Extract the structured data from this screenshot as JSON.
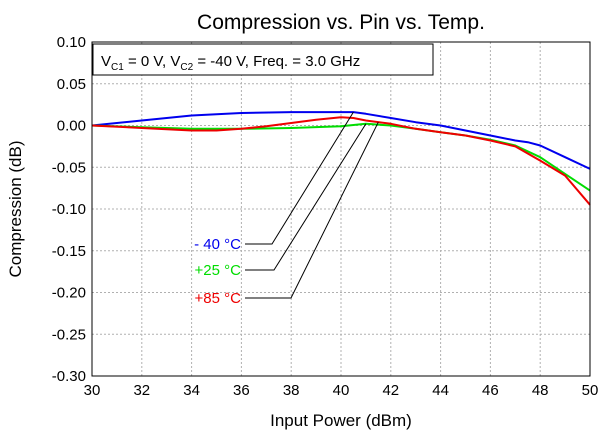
{
  "chart_data": {
    "type": "line",
    "title": "Compression vs. Pin vs. Temp.",
    "xlabel": "Input Power (dBm)",
    "ylabel": "Compression (dB)",
    "xlim": [
      30,
      50
    ],
    "ylim": [
      -0.3,
      0.1
    ],
    "xticks": [
      30,
      32,
      34,
      36,
      38,
      40,
      42,
      44,
      46,
      48,
      50
    ],
    "yticks": [
      0.1,
      0.05,
      0.0,
      -0.05,
      -0.1,
      -0.15,
      -0.2,
      -0.25,
      -0.3
    ],
    "grid": true,
    "conditions": {
      "vc1_prefix": "V",
      "vc1_sub": "C1",
      "vc1_value": " = 0 V, V",
      "vc2_sub": "C2",
      "vc2_rest": " = -40 V, Freq. = 3.0 GHz"
    },
    "series": [
      {
        "name": "- 40 °C",
        "color": "#0000ee",
        "x": [
          30,
          32,
          34,
          36,
          38,
          40,
          40.5,
          41,
          42,
          43,
          44,
          45,
          46,
          47,
          47.5,
          48,
          49,
          50
        ],
        "y": [
          0.0,
          0.006,
          0.012,
          0.015,
          0.016,
          0.016,
          0.016,
          0.014,
          0.009,
          0.004,
          0.0,
          -0.006,
          -0.012,
          -0.018,
          -0.02,
          -0.024,
          -0.038,
          -0.052
        ]
      },
      {
        "name": "+25 °C",
        "color": "#00dd00",
        "x": [
          30,
          32,
          34,
          36,
          38,
          40,
          41,
          42,
          43,
          44,
          45,
          46,
          47,
          48,
          49,
          50
        ],
        "y": [
          0.0,
          -0.002,
          -0.004,
          -0.004,
          -0.003,
          -0.001,
          0.002,
          0.0,
          -0.004,
          -0.008,
          -0.012,
          -0.017,
          -0.024,
          -0.038,
          -0.058,
          -0.078
        ]
      },
      {
        "name": "+85 °C",
        "color": "#ee0000",
        "x": [
          30,
          32,
          34,
          35,
          36,
          37,
          38,
          39,
          40,
          40.5,
          41,
          42,
          43,
          44,
          45,
          46,
          47,
          48,
          49,
          50
        ],
        "y": [
          0.0,
          -0.003,
          -0.006,
          -0.006,
          -0.004,
          -0.001,
          0.003,
          0.007,
          0.01,
          0.009,
          0.006,
          0.002,
          -0.004,
          -0.008,
          -0.012,
          -0.018,
          -0.025,
          -0.042,
          -0.06,
          -0.095
        ]
      }
    ]
  }
}
